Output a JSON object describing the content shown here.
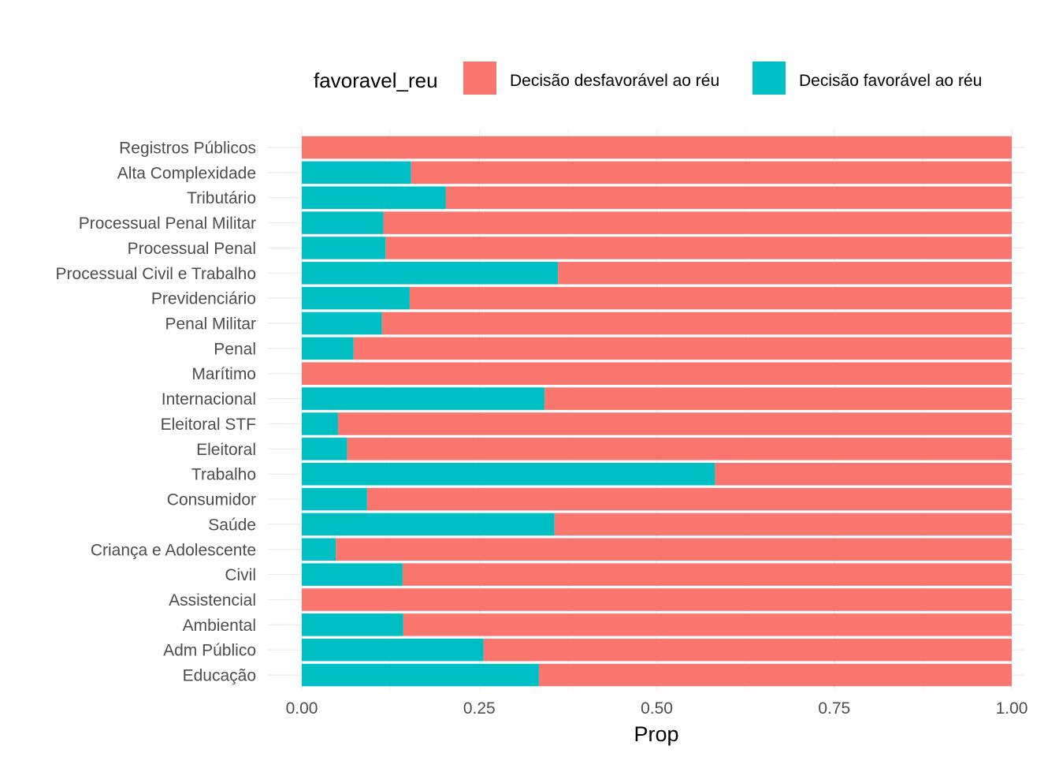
{
  "legend": {
    "title": "favoravel_reu",
    "items": [
      {
        "label": "Decisão desfavorável ao réu",
        "color": "#F8766D"
      },
      {
        "label": "Decisão favorável ao réu",
        "color": "#00BFC4"
      }
    ]
  },
  "chart_data": {
    "type": "bar",
    "orientation": "horizontal",
    "stacked": true,
    "xlabel": "Prop",
    "ylabel": "",
    "xlim": [
      0,
      1
    ],
    "x_ticks": [
      "0.00",
      "0.25",
      "0.50",
      "0.75",
      "1.00"
    ],
    "grid": true,
    "legend_position": "top",
    "categories": [
      "Registros Públicos",
      "Alta Complexidade",
      "Tributário",
      "Processual Penal Militar",
      "Processual Penal",
      "Processual Civil e Trabalho",
      "Previdenciário",
      "Penal Militar",
      "Penal",
      "Marítimo",
      "Internacional",
      "Eleitoral STF",
      "Eleitoral",
      "Trabalho",
      "Consumidor",
      "Saúde",
      "Criança e Adolescente",
      "Civil",
      "Assistencial",
      "Ambiental",
      "Adm Público",
      "Educação"
    ],
    "series": [
      {
        "name": "Decisão favorável ao réu",
        "color": "#00BFC4",
        "values": [
          0.0,
          0.154,
          0.203,
          0.115,
          0.118,
          0.361,
          0.152,
          0.113,
          0.073,
          0.0,
          0.342,
          0.051,
          0.064,
          0.582,
          0.092,
          0.356,
          0.048,
          0.142,
          0.0,
          0.143,
          0.256,
          0.334
        ]
      },
      {
        "name": "Decisão desfavorável ao réu",
        "color": "#F8766D",
        "values": [
          1.0,
          0.846,
          0.797,
          0.885,
          0.882,
          0.639,
          0.848,
          0.887,
          0.927,
          1.0,
          0.658,
          0.949,
          0.936,
          0.418,
          0.908,
          0.644,
          0.952,
          0.858,
          1.0,
          0.857,
          0.744,
          0.666
        ]
      }
    ]
  }
}
